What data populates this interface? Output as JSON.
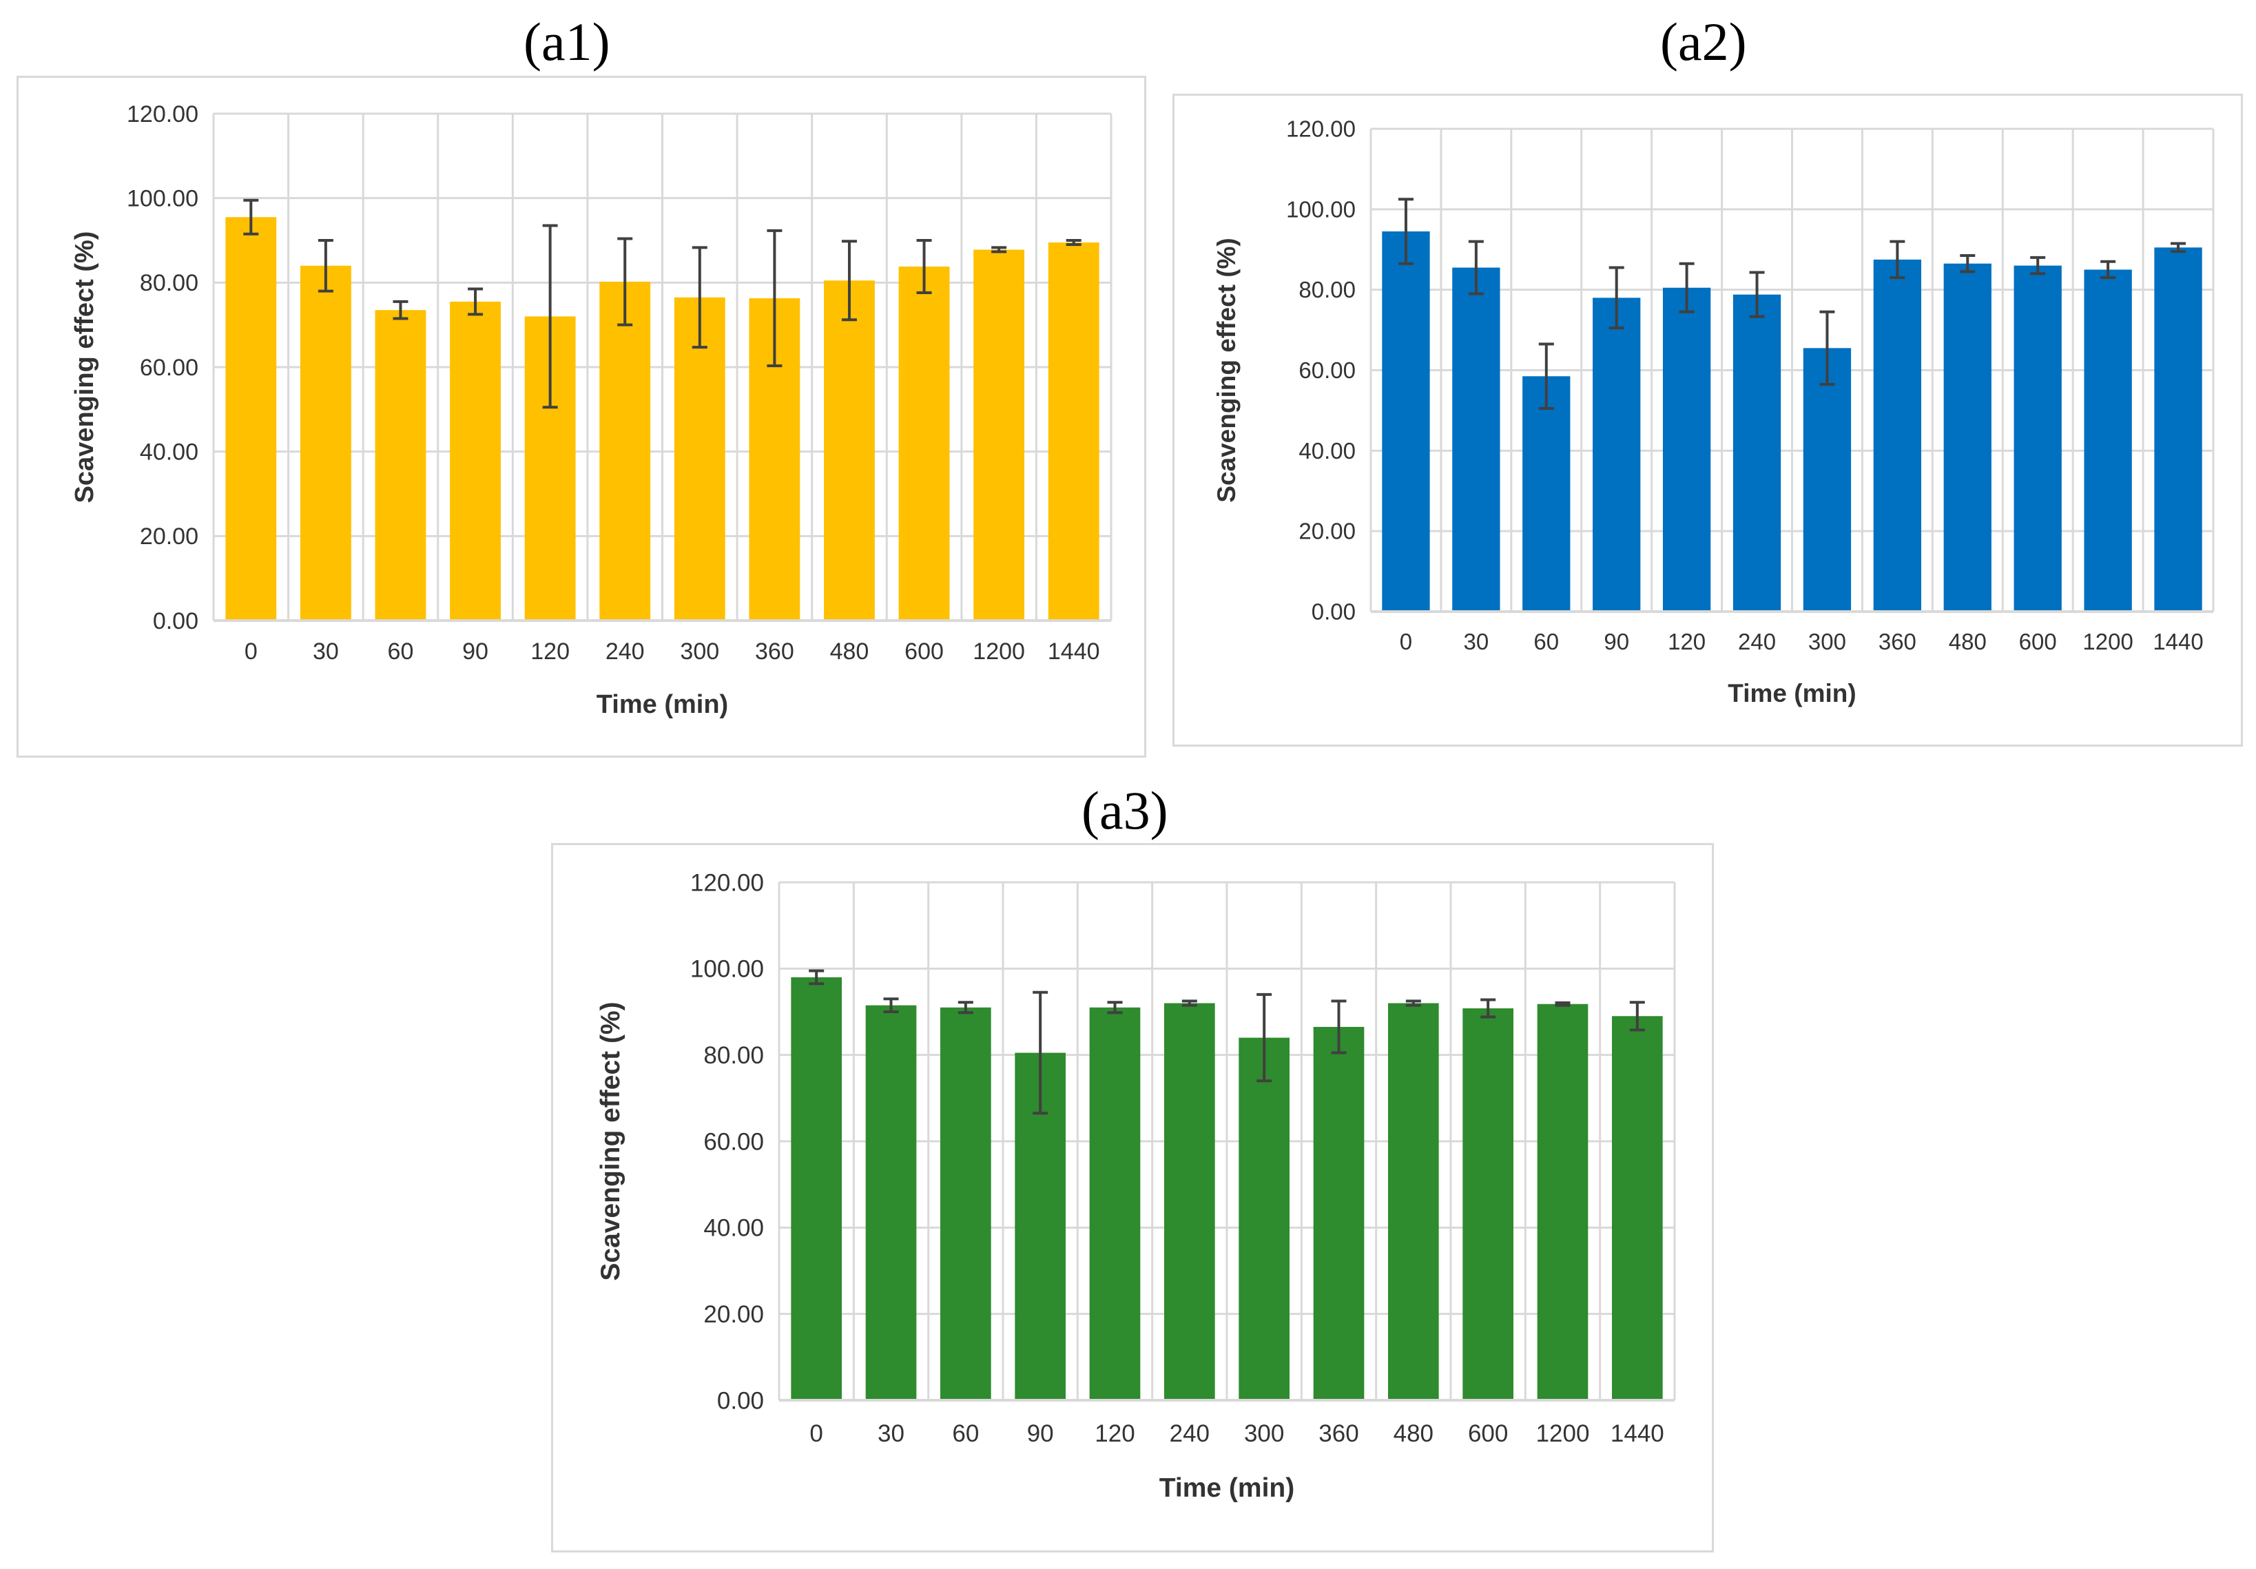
{
  "colors": {
    "a1": "#FFC000",
    "a2": "#0070C0",
    "a3": "#2E8B2E",
    "grid": "#d9d9d9",
    "error": "#404040"
  },
  "chart_data": [
    {
      "id": "a1",
      "panel_label": "(a1)",
      "type": "bar",
      "xlabel": "Time (min)",
      "ylabel": "Scavenging effect (%)",
      "ylim": [
        0,
        120
      ],
      "yticks": [
        "0.00",
        "20.00",
        "40.00",
        "60.00",
        "80.00",
        "100.00",
        "120.00"
      ],
      "grid": true,
      "categories": [
        "0",
        "30",
        "60",
        "90",
        "120",
        "240",
        "300",
        "360",
        "480",
        "600",
        "1200",
        "1440"
      ],
      "values": [
        95.5,
        84.0,
        73.5,
        75.5,
        72.0,
        80.2,
        76.5,
        76.3,
        80.5,
        83.8,
        87.8,
        89.5
      ],
      "errors": [
        4.0,
        6.0,
        2.0,
        3.0,
        21.5,
        10.2,
        11.8,
        16.0,
        9.3,
        6.2,
        0.5,
        0.5
      ]
    },
    {
      "id": "a2",
      "panel_label": "(a2)",
      "type": "bar",
      "xlabel": "Time (min)",
      "ylabel": "Scavenging effect (%)",
      "ylim": [
        0,
        120
      ],
      "yticks": [
        "0.00",
        "20.00",
        "40.00",
        "60.00",
        "80.00",
        "100.00",
        "120.00"
      ],
      "grid": true,
      "categories": [
        "0",
        "30",
        "60",
        "90",
        "120",
        "240",
        "300",
        "360",
        "480",
        "600",
        "1200",
        "1440"
      ],
      "values": [
        94.5,
        85.5,
        58.5,
        78.0,
        80.5,
        78.8,
        65.5,
        87.5,
        86.5,
        86.0,
        85.0,
        90.5
      ],
      "errors": [
        8.0,
        6.5,
        8.0,
        7.5,
        6.0,
        5.5,
        9.0,
        4.5,
        2.0,
        2.0,
        2.0,
        1.0
      ]
    },
    {
      "id": "a3",
      "panel_label": "(a3)",
      "type": "bar",
      "xlabel": "Time (min)",
      "ylabel": "Scavenging effect (%)",
      "ylim": [
        0,
        120
      ],
      "yticks": [
        "0.00",
        "20.00",
        "40.00",
        "60.00",
        "80.00",
        "100.00",
        "120.00"
      ],
      "grid": true,
      "categories": [
        "0",
        "30",
        "60",
        "90",
        "120",
        "240",
        "300",
        "360",
        "480",
        "600",
        "1200",
        "1440"
      ],
      "values": [
        98.0,
        91.5,
        91.0,
        80.5,
        91.0,
        92.0,
        84.0,
        86.5,
        92.0,
        90.8,
        91.8,
        89.0
      ],
      "errors": [
        1.5,
        1.5,
        1.2,
        14.0,
        1.2,
        0.5,
        10.0,
        6.0,
        0.5,
        2.0,
        0.3,
        3.2
      ]
    }
  ]
}
